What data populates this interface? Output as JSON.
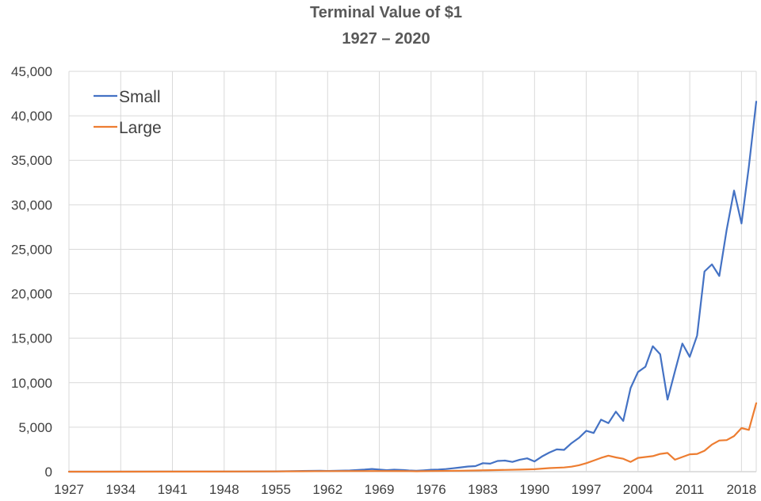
{
  "chart_data": {
    "type": "line",
    "title": "Terminal Value of $1",
    "subtitle": "1927 – 2020",
    "xlabel": "",
    "ylabel": "",
    "xlim": [
      1927,
      2020
    ],
    "ylim": [
      0,
      45000
    ],
    "x_ticks": [
      "1927",
      "1934",
      "1941",
      "1948",
      "1955",
      "1962",
      "1969",
      "1976",
      "1983",
      "1990",
      "1997",
      "2004",
      "2011",
      "2018"
    ],
    "y_ticks": [
      "0",
      "5,000",
      "10,000",
      "15,000",
      "20,000",
      "25,000",
      "30,000",
      "35,000",
      "40,000",
      "45,000"
    ],
    "y_tick_values": [
      0,
      5000,
      10000,
      15000,
      20000,
      25000,
      30000,
      35000,
      40000,
      45000
    ],
    "grid": true,
    "legend_position": "top-left",
    "series": [
      {
        "name": "Small",
        "color": "#4472c4",
        "points": [
          [
            1927,
            1
          ],
          [
            1940,
            5
          ],
          [
            1950,
            20
          ],
          [
            1955,
            40
          ],
          [
            1958,
            70
          ],
          [
            1961,
            95
          ],
          [
            1962,
            80
          ],
          [
            1965,
            130
          ],
          [
            1967,
            230
          ],
          [
            1968,
            300
          ],
          [
            1969,
            230
          ],
          [
            1970,
            170
          ],
          [
            1971,
            220
          ],
          [
            1972,
            200
          ],
          [
            1973,
            130
          ],
          [
            1974,
            100
          ],
          [
            1975,
            150
          ],
          [
            1976,
            210
          ],
          [
            1977,
            240
          ],
          [
            1978,
            290
          ],
          [
            1979,
            380
          ],
          [
            1980,
            480
          ],
          [
            1981,
            580
          ],
          [
            1982,
            620
          ],
          [
            1983,
            950
          ],
          [
            1984,
            900
          ],
          [
            1985,
            1200
          ],
          [
            1986,
            1250
          ],
          [
            1987,
            1100
          ],
          [
            1988,
            1350
          ],
          [
            1989,
            1500
          ],
          [
            1990,
            1150
          ],
          [
            1991,
            1700
          ],
          [
            1992,
            2150
          ],
          [
            1993,
            2500
          ],
          [
            1994,
            2450
          ],
          [
            1995,
            3200
          ],
          [
            1996,
            3800
          ],
          [
            1997,
            4600
          ],
          [
            1998,
            4350
          ],
          [
            1999,
            5850
          ],
          [
            2000,
            5450
          ],
          [
            2001,
            6750
          ],
          [
            2002,
            5700
          ],
          [
            2003,
            9400
          ],
          [
            2004,
            11200
          ],
          [
            2005,
            11800
          ],
          [
            2006,
            14100
          ],
          [
            2007,
            13200
          ],
          [
            2008,
            8100
          ],
          [
            2009,
            11300
          ],
          [
            2010,
            14400
          ],
          [
            2011,
            12900
          ],
          [
            2012,
            15300
          ],
          [
            2013,
            22500
          ],
          [
            2014,
            23300
          ],
          [
            2015,
            22000
          ],
          [
            2016,
            27200
          ],
          [
            2017,
            31600
          ],
          [
            2018,
            27900
          ],
          [
            2019,
            34300
          ],
          [
            2020,
            41600
          ]
        ]
      },
      {
        "name": "Large",
        "color": "#ed7d31",
        "points": [
          [
            1927,
            1
          ],
          [
            1945,
            5
          ],
          [
            1955,
            30
          ],
          [
            1962,
            60
          ],
          [
            1969,
            70
          ],
          [
            1973,
            60
          ],
          [
            1974,
            45
          ],
          [
            1976,
            70
          ],
          [
            1980,
            110
          ],
          [
            1984,
            170
          ],
          [
            1988,
            230
          ],
          [
            1990,
            280
          ],
          [
            1992,
            400
          ],
          [
            1994,
            470
          ],
          [
            1995,
            560
          ],
          [
            1996,
            720
          ],
          [
            1997,
            950
          ],
          [
            1998,
            1250
          ],
          [
            1999,
            1550
          ],
          [
            2000,
            1800
          ],
          [
            2001,
            1600
          ],
          [
            2002,
            1450
          ],
          [
            2003,
            1100
          ],
          [
            2004,
            1550
          ],
          [
            2005,
            1650
          ],
          [
            2006,
            1750
          ],
          [
            2007,
            2000
          ],
          [
            2008,
            2100
          ],
          [
            2009,
            1350
          ],
          [
            2010,
            1650
          ],
          [
            2011,
            1950
          ],
          [
            2012,
            2000
          ],
          [
            2013,
            2350
          ],
          [
            2014,
            3050
          ],
          [
            2015,
            3500
          ],
          [
            2016,
            3550
          ],
          [
            2017,
            4000
          ],
          [
            2018,
            4900
          ],
          [
            2019,
            4700
          ],
          [
            2020,
            7700
          ]
        ]
      }
    ]
  }
}
